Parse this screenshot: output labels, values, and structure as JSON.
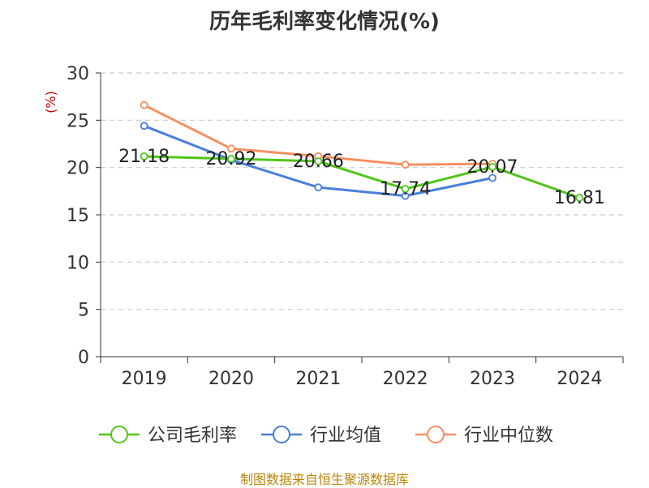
{
  "title": "历年毛利率变化情况(%)",
  "source": "制图数据来自恒生聚源数据库",
  "colors": {
    "grid": "#cccccc",
    "axis": "#333333",
    "unit": "#cc0000",
    "source": "#b8860b"
  },
  "chart_data": {
    "type": "line",
    "title": "历年毛利率变化情况(%)",
    "ylabel": "(%)",
    "xlabel": "",
    "categories": [
      "2019",
      "2020",
      "2021",
      "2022",
      "2023",
      "2024"
    ],
    "ylim": [
      0,
      30
    ],
    "yticks": [
      0,
      5,
      10,
      15,
      20,
      25,
      30
    ],
    "grid": "horizontal-dashed",
    "legend_position": "bottom",
    "series": [
      {
        "name": "公司毛利率",
        "color": "#52c41a",
        "values": [
          21.18,
          20.92,
          20.66,
          17.74,
          20.07,
          16.81
        ],
        "labels": [
          "21.18",
          "20.92",
          "20.66",
          "17.74",
          "20.07",
          "16.81"
        ]
      },
      {
        "name": "行业均值",
        "color": "#4a7fd9",
        "values": [
          24.4,
          20.8,
          17.9,
          17.0,
          18.9,
          null
        ]
      },
      {
        "name": "行业中位数",
        "color": "#f59060",
        "values": [
          26.6,
          22.0,
          21.2,
          20.3,
          20.4,
          null
        ]
      }
    ]
  }
}
